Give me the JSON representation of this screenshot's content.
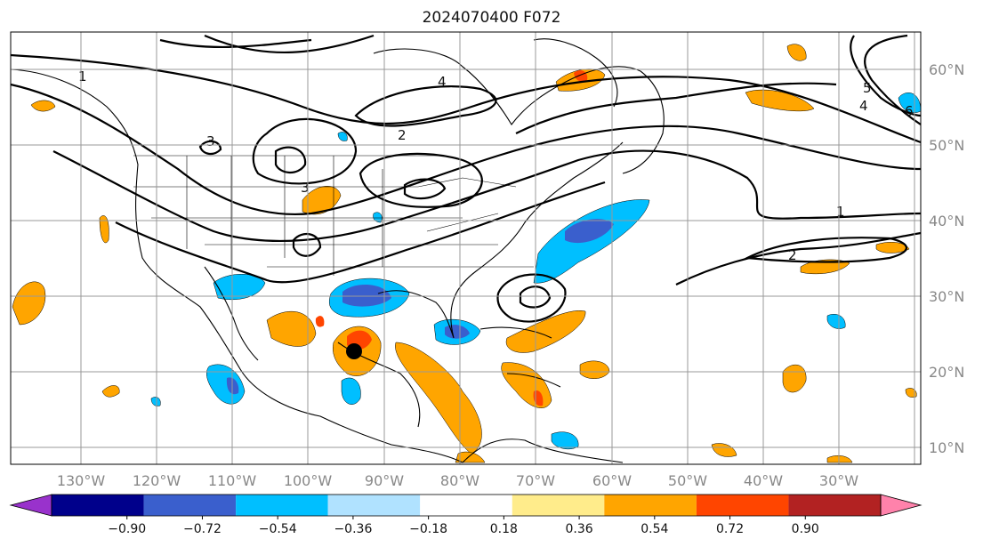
{
  "title": "2024070400 F072",
  "map": {
    "lon_labels": [
      "130°W",
      "120°W",
      "110°W",
      "100°W",
      "90°W",
      "80°W",
      "70°W",
      "60°W",
      "50°W",
      "40°W",
      "30°W"
    ],
    "lat_labels": [
      "60°N",
      "50°N",
      "40°N",
      "30°N",
      "20°N",
      "10°N"
    ],
    "contour_labels": [
      "1",
      "2",
      "3",
      "4",
      "5",
      "6"
    ]
  },
  "colorbar": {
    "colors": [
      "#9932cc",
      "#00008b",
      "#3a5fcd",
      "#00bfff",
      "#b0e2ff",
      "#ffffff",
      "#ffec8b",
      "#ffa500",
      "#ff4500",
      "#b22222",
      "#ff82ab"
    ],
    "tick_labels": [
      "−0.90",
      "−0.72",
      "−0.54",
      "−0.36",
      "−0.18",
      "0.18",
      "0.36",
      "0.54",
      "0.72",
      "0.90"
    ]
  },
  "colors": {
    "grid": "#999999",
    "coast": "#000000",
    "contour": "#000000",
    "marker": "#000000"
  }
}
